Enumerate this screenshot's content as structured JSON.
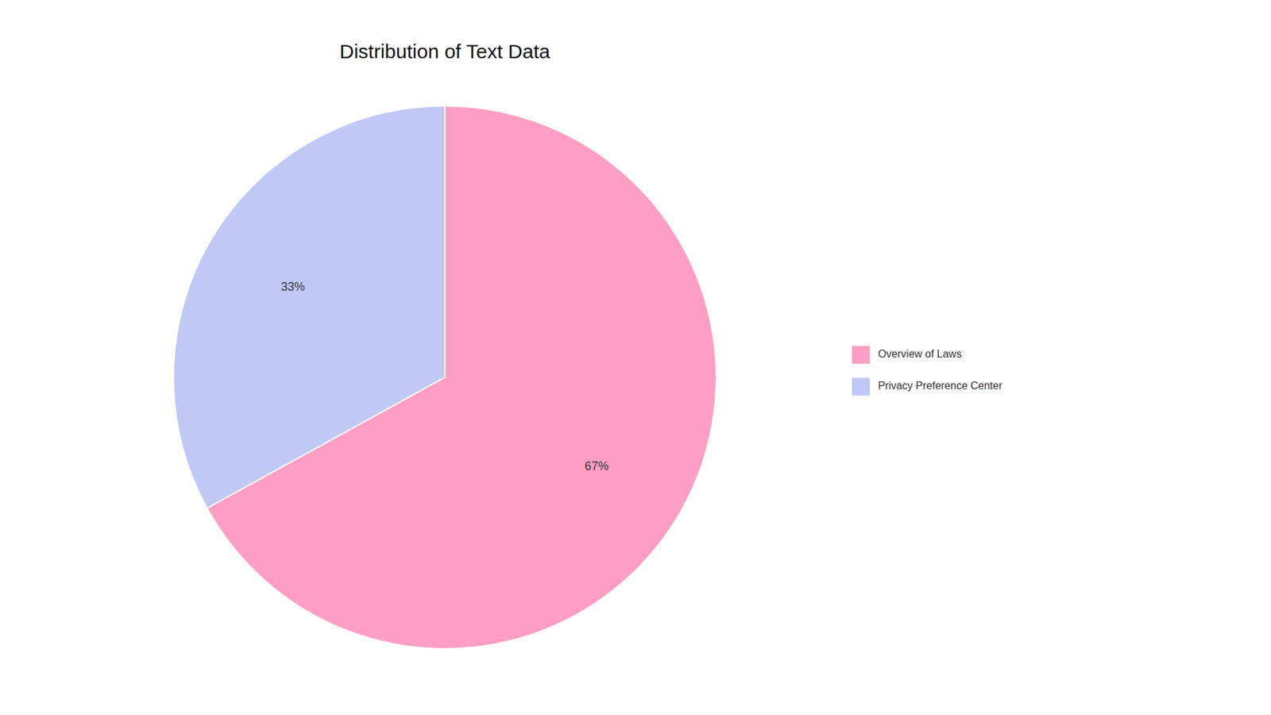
{
  "chart_data": {
    "type": "pie",
    "title": "Distribution of Text Data",
    "categories": [
      "Overview of Laws",
      "Privacy Preference Center"
    ],
    "values": [
      67,
      33
    ],
    "value_labels": [
      "67%",
      "33%"
    ],
    "colors": [
      "#FF9EC4",
      "#C0C8F5"
    ],
    "data_labels": true,
    "legend": "right"
  }
}
